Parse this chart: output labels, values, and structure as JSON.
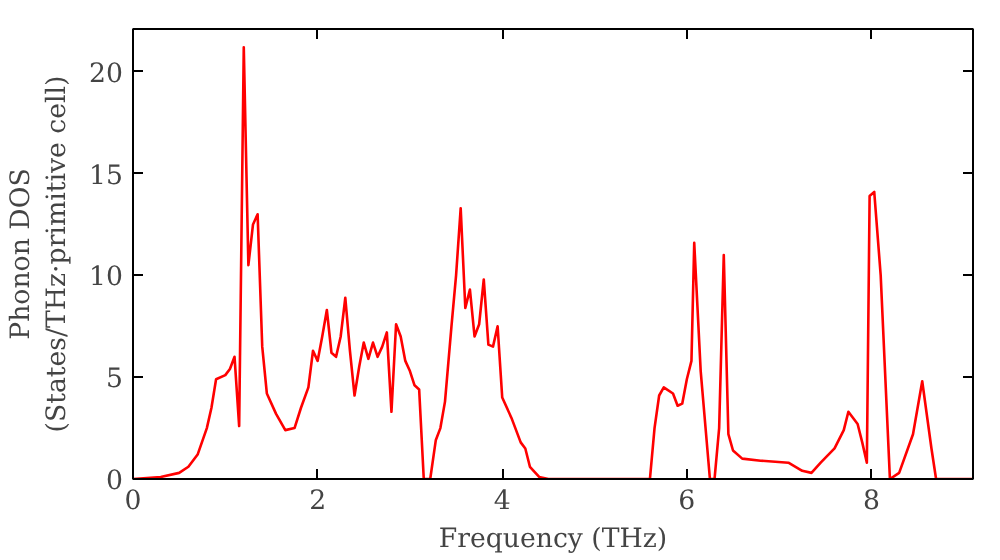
{
  "chart_data": {
    "type": "line",
    "xlabel": "Frequency (THz)",
    "ylabel": "Phonon DOS\n(States/THz·primitive cell)",
    "xlim": [
      0,
      9.1
    ],
    "ylim": [
      0,
      22.1
    ],
    "xticks": [
      0,
      2,
      4,
      6,
      8
    ],
    "yticks": [
      0,
      5,
      10,
      15,
      20
    ],
    "grid": false,
    "marker": "none",
    "line_style": "solid",
    "series": [
      {
        "color": "#ff0000",
        "x": [
          0,
          0.3,
          0.5,
          0.6,
          0.7,
          0.8,
          0.85,
          0.9,
          1.0,
          1.05,
          1.1,
          1.15,
          1.2,
          1.25,
          1.3,
          1.35,
          1.4,
          1.45,
          1.55,
          1.65,
          1.75,
          1.82,
          1.9,
          1.95,
          2.0,
          2.05,
          2.1,
          2.15,
          2.2,
          2.25,
          2.3,
          2.35,
          2.4,
          2.45,
          2.5,
          2.55,
          2.6,
          2.65,
          2.7,
          2.75,
          2.8,
          2.85,
          2.9,
          2.95,
          3.0,
          3.05,
          3.1,
          3.15,
          3.22,
          3.28,
          3.33,
          3.38,
          3.45,
          3.5,
          3.55,
          3.6,
          3.65,
          3.7,
          3.75,
          3.8,
          3.85,
          3.9,
          3.95,
          4.0,
          4.1,
          4.2,
          4.25,
          4.3,
          4.4,
          4.5,
          5.6,
          5.65,
          5.7,
          5.75,
          5.85,
          5.9,
          5.95,
          6.0,
          6.05,
          6.08,
          6.15,
          6.25,
          6.3,
          6.35,
          6.4,
          6.45,
          6.5,
          6.6,
          6.8,
          7.1,
          7.25,
          7.35,
          7.45,
          7.6,
          7.7,
          7.75,
          7.85,
          7.9,
          7.95,
          7.98,
          8.03,
          8.1,
          8.2,
          8.3,
          8.45,
          8.55,
          8.65,
          8.7,
          9.1
        ],
        "values": [
          0,
          0.1,
          0.3,
          0.6,
          1.2,
          2.5,
          3.5,
          4.9,
          5.1,
          5.4,
          6.0,
          2.6,
          21.2,
          10.5,
          12.5,
          13.0,
          6.5,
          4.2,
          3.2,
          2.4,
          2.5,
          3.5,
          4.5,
          6.3,
          5.8,
          7.0,
          8.3,
          6.2,
          6.0,
          7.0,
          8.9,
          6.3,
          4.1,
          5.5,
          6.7,
          5.9,
          6.7,
          6.0,
          6.5,
          7.2,
          3.3,
          7.6,
          7.0,
          5.8,
          5.3,
          4.6,
          4.4,
          0,
          0,
          1.9,
          2.5,
          3.8,
          7.5,
          10,
          13.3,
          8.4,
          9.3,
          7.0,
          7.6,
          9.8,
          6.6,
          6.5,
          7.5,
          4.0,
          3.0,
          1.8,
          1.5,
          0.6,
          0.1,
          0,
          0,
          2.5,
          4.1,
          4.5,
          4.2,
          3.6,
          3.7,
          4.9,
          5.8,
          11.6,
          5.3,
          0,
          0,
          2.5,
          11,
          2.2,
          1.4,
          1.0,
          0.9,
          0.8,
          0.4,
          0.3,
          0.8,
          1.5,
          2.4,
          3.3,
          2.7,
          1.8,
          0.8,
          13.9,
          14.1,
          10,
          0,
          0.3,
          2.2,
          4.8,
          1.5,
          0,
          0
        ]
      }
    ]
  }
}
